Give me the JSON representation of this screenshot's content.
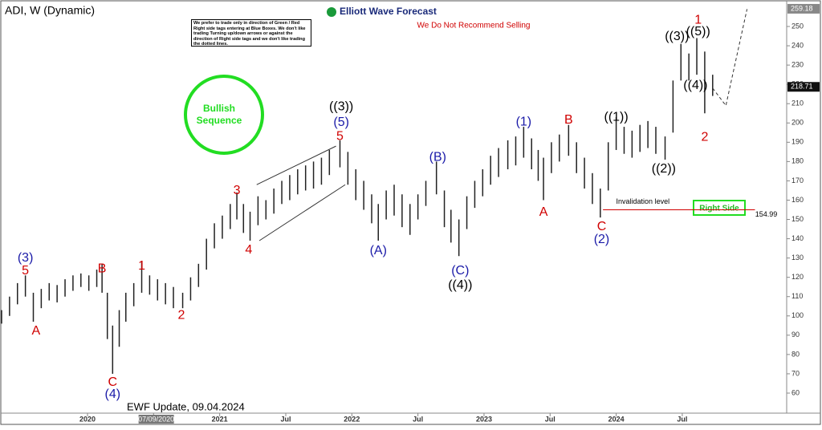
{
  "header": {
    "symbol": "ADI, W (Dynamic)",
    "logo": "Elliott Wave Forecast",
    "warning": "We Do Not Recommend Selling",
    "disclaimer": "We prefer to trade only in direction of Green / Red Right side tags entering at Blue Boxes. We don't like trading Turning up/down arrows or against the direction of Right side tags and we don't like trading the dotted lines.",
    "badge": "Bullish Sequence",
    "right_side": "Right Side",
    "footer": "EWF Update, 09.04.2024"
  },
  "chart_data": {
    "type": "ohlc",
    "color": "#222",
    "xlim": [
      2019.35,
      2025.29
    ],
    "ylim": [
      49.6,
      260.4
    ],
    "xticks": [
      {
        "value": 2020,
        "label": "2020"
      },
      {
        "value": 2020.5,
        "label": "Jul"
      },
      {
        "value": 2021,
        "label": "2021"
      },
      {
        "value": 2021.5,
        "label": "Jul"
      },
      {
        "value": 2022,
        "label": "2022"
      },
      {
        "value": 2022.5,
        "label": "Jul"
      },
      {
        "value": 2023,
        "label": "2023"
      },
      {
        "value": 2023.5,
        "label": "Jul"
      },
      {
        "value": 2024,
        "label": "2024"
      },
      {
        "value": 2024.5,
        "label": "Jul"
      }
    ],
    "yticks": [
      60,
      70,
      80,
      90,
      100,
      110,
      120,
      130,
      140,
      150,
      160,
      170,
      180,
      190,
      200,
      210,
      220,
      230,
      240,
      250
    ],
    "crosshair": {
      "value": 2020.52,
      "label": "07/09/2020"
    },
    "price_tags": [
      259.18,
      218.71
    ],
    "x": [
      2019.35,
      2019.41,
      2019.47,
      2019.53,
      2019.59,
      2019.65,
      2019.71,
      2019.77,
      2019.83,
      2019.89,
      2019.95,
      2020.01,
      2020.07,
      2020.11,
      2020.15,
      2020.19,
      2020.24,
      2020.29,
      2020.35,
      2020.41,
      2020.47,
      2020.53,
      2020.59,
      2020.65,
      2020.72,
      2020.78,
      2020.84,
      2020.9,
      2020.96,
      2021.02,
      2021.08,
      2021.13,
      2021.18,
      2021.23,
      2021.29,
      2021.35,
      2021.41,
      2021.47,
      2021.53,
      2021.59,
      2021.65,
      2021.71,
      2021.77,
      2021.83,
      2021.91,
      2021.97,
      2022.03,
      2022.09,
      2022.15,
      2022.2,
      2022.26,
      2022.32,
      2022.38,
      2022.44,
      2022.5,
      2022.56,
      2022.64,
      2022.7,
      2022.75,
      2022.81,
      2022.87,
      2022.93,
      2022.99,
      2023.05,
      2023.11,
      2023.18,
      2023.24,
      2023.3,
      2023.36,
      2023.41,
      2023.45,
      2023.51,
      2023.57,
      2023.64,
      2023.7,
      2023.76,
      2023.82,
      2023.88,
      2023.94,
      2024.0,
      2024.06,
      2024.12,
      2024.18,
      2024.24,
      2024.3,
      2024.37,
      2024.43,
      2024.49,
      2024.55,
      2024.61,
      2024.67,
      2024.73
    ],
    "high": [
      103,
      110,
      117,
      121,
      112,
      114,
      117,
      116,
      119,
      121,
      122,
      121,
      124,
      127,
      112,
      95,
      103,
      112,
      117,
      128,
      121,
      119,
      117,
      115,
      112,
      120,
      127,
      140,
      148,
      152,
      158,
      164,
      158,
      154,
      162,
      160,
      166,
      170,
      173,
      176,
      178,
      180,
      182,
      186,
      191,
      185,
      176,
      170,
      163,
      158,
      165,
      168,
      163,
      158,
      163,
      170,
      180,
      165,
      155,
      150,
      162,
      170,
      176,
      183,
      187,
      191,
      193,
      198,
      192,
      186,
      182,
      190,
      194,
      199,
      190,
      182,
      174,
      166,
      190,
      203,
      198,
      196,
      199,
      201,
      198,
      193,
      222,
      241,
      236,
      244,
      237,
      225
    ],
    "low": [
      96,
      100,
      106,
      110,
      97,
      104,
      108,
      107,
      110,
      113,
      115,
      113,
      115,
      112,
      88,
      70,
      84,
      97,
      105,
      112,
      111,
      108,
      106,
      104,
      104,
      108,
      115,
      124,
      135,
      140,
      145,
      150,
      143,
      139,
      147,
      150,
      153,
      158,
      160,
      163,
      165,
      166,
      168,
      173,
      177,
      168,
      160,
      155,
      148,
      139,
      150,
      152,
      146,
      142,
      150,
      157,
      163,
      146,
      138,
      131,
      145,
      156,
      162,
      168,
      172,
      176,
      178,
      182,
      176,
      170,
      160,
      174,
      180,
      183,
      174,
      166,
      158,
      151,
      165,
      186,
      184,
      182,
      185,
      187,
      184,
      181,
      195,
      222,
      222,
      225,
      205,
      214
    ],
    "invalidation": {
      "label": "Invalidation level",
      "value": 154.99,
      "x": [
        2023.9,
        2025.05
      ]
    },
    "wedge": [
      {
        "x": [
          2021.28,
          2021.88
        ],
        "y": [
          168,
          188
        ]
      },
      {
        "x": [
          2021.3,
          2021.95
        ],
        "y": [
          139,
          168
        ]
      }
    ],
    "projection": {
      "x": [
        2024.73,
        2024.83,
        2024.99
      ],
      "y": [
        218,
        209,
        259
      ]
    },
    "annotations": [
      {
        "text": "(3)",
        "x": 2019.53,
        "y": 129.9,
        "color": "#1a1aa8"
      },
      {
        "text": "5",
        "x": 2019.53,
        "y": 123.2,
        "color": "#d00000"
      },
      {
        "text": "A",
        "x": 2019.61,
        "y": 92,
        "color": "#d00000"
      },
      {
        "text": "B",
        "x": 2020.11,
        "y": 124.4,
        "color": "#d00000"
      },
      {
        "text": "C",
        "x": 2020.19,
        "y": 65.4,
        "color": "#d00000"
      },
      {
        "text": "(4)",
        "x": 2020.19,
        "y": 59.2,
        "color": "#1a1aa8"
      },
      {
        "text": "1",
        "x": 2020.41,
        "y": 125.7,
        "color": "#d00000"
      },
      {
        "text": "2",
        "x": 2020.71,
        "y": 100.3,
        "color": "#d00000"
      },
      {
        "text": "3",
        "x": 2021.13,
        "y": 164.8,
        "color": "#d00000"
      },
      {
        "text": "4",
        "x": 2021.22,
        "y": 134,
        "color": "#d00000"
      },
      {
        "text": "((3))",
        "x": 2021.92,
        "y": 208.4,
        "color": "#000000"
      },
      {
        "text": "(5)",
        "x": 2021.92,
        "y": 200.1,
        "color": "#1a1aa8"
      },
      {
        "text": "5",
        "x": 2021.91,
        "y": 193,
        "color": "#d00000"
      },
      {
        "text": "(A)",
        "x": 2022.2,
        "y": 133.6,
        "color": "#1a1aa8"
      },
      {
        "text": "(B)",
        "x": 2022.65,
        "y": 182.2,
        "color": "#1a1aa8"
      },
      {
        "text": "(C)",
        "x": 2022.82,
        "y": 123.2,
        "color": "#1a1aa8"
      },
      {
        "text": "((4))",
        "x": 2022.82,
        "y": 115.7,
        "color": "#000000"
      },
      {
        "text": "(1)",
        "x": 2023.3,
        "y": 200.5,
        "color": "#1a1aa8"
      },
      {
        "text": "A",
        "x": 2023.45,
        "y": 153.6,
        "color": "#d00000"
      },
      {
        "text": "B",
        "x": 2023.64,
        "y": 201.4,
        "color": "#d00000"
      },
      {
        "text": "C",
        "x": 2023.89,
        "y": 146.1,
        "color": "#d00000"
      },
      {
        "text": "(2)",
        "x": 2023.89,
        "y": 139.4,
        "color": "#1a1aa8"
      },
      {
        "text": "((1))",
        "x": 2024.0,
        "y": 203,
        "color": "#000000"
      },
      {
        "text": "((2))",
        "x": 2024.36,
        "y": 176,
        "color": "#000000"
      },
      {
        "text": "((3))",
        "x": 2024.46,
        "y": 244.6,
        "color": "#000000"
      },
      {
        "text": "((5))",
        "x": 2024.62,
        "y": 247.1,
        "color": "#000000"
      },
      {
        "text": "1",
        "x": 2024.62,
        "y": 253.3,
        "color": "#d00000"
      },
      {
        "text": "((4))",
        "x": 2024.6,
        "y": 219.3,
        "color": "#000000"
      },
      {
        "text": "2",
        "x": 2024.67,
        "y": 192.6,
        "color": "#d00000"
      }
    ]
  }
}
